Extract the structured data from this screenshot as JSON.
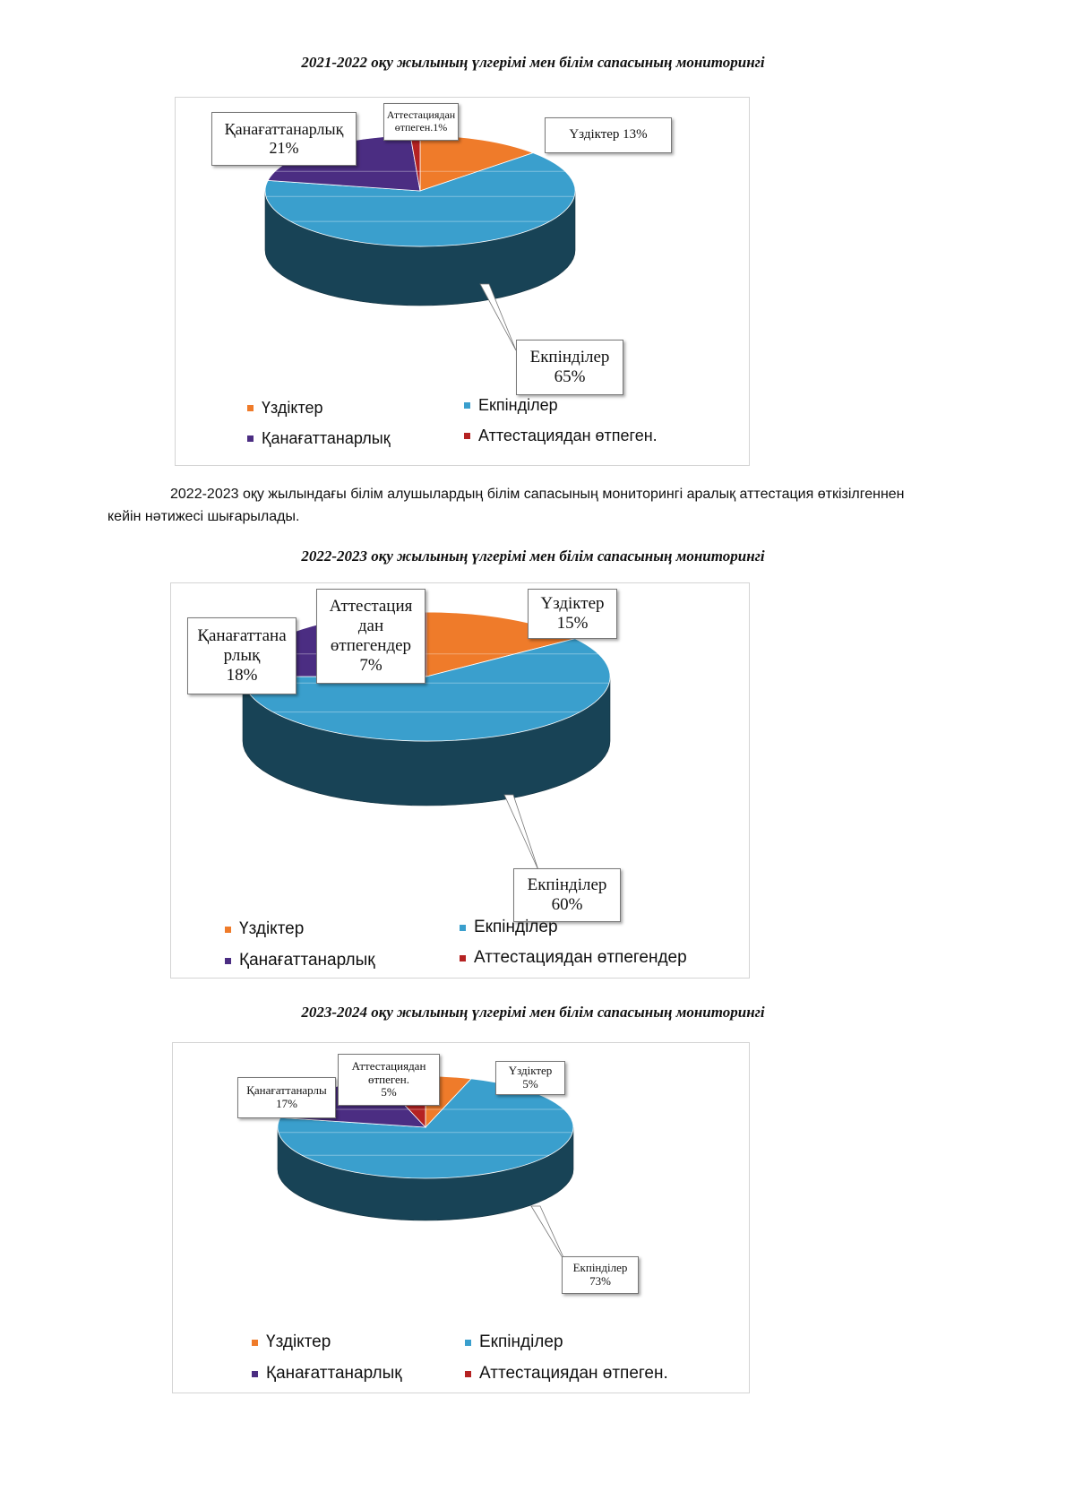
{
  "page": {
    "paragraph_line1": "2022-2023 оқу жылындағы білім алушылардың білім сапасының мониторингі аралық аттестация өткізілгеннен",
    "paragraph_line2": "кейін нәтижесі шығарылады."
  },
  "colors": {
    "uzdikter": "#ef7b2a",
    "ekpindiler": "#3a9fcd",
    "kanagattanarlyk": "#4b2d82",
    "attestation": "#b52222"
  },
  "chart_data": [
    {
      "type": "pie",
      "title": "2021-2022 оқу жылының үлгерімі мен білім сапасының  мониторингі",
      "categories": [
        "Үздіктер",
        "Екпінділер",
        "Қанағаттанарлық",
        "Аттестациядан өтпеген."
      ],
      "values": [
        13,
        65,
        21,
        1
      ],
      "data_labels": [
        "Үздіктер 13%",
        "Екпінділер\n65%",
        "Қанағаттанарлық\n21%",
        "Аттестациядан\nөтпеген.1%"
      ],
      "legend": [
        "Үздіктер",
        "Екпінділер",
        "Қанағаттанарлық",
        "Аттестациядан өтпеген."
      ],
      "legend_position": "bottom"
    },
    {
      "type": "pie",
      "title": "2022-2023 оқу жылының үлгерімі мен білім сапасының  мониторингі",
      "categories": [
        "Үздіктер",
        "Екпінділер",
        "Қанағаттанарлық",
        "Аттестациядан өтпегендер"
      ],
      "values": [
        15,
        60,
        18,
        7
      ],
      "data_labels": [
        "Үздіктер\n15%",
        "Екпінділер\n60%",
        "Қанағаттана\nрлық\n18%",
        "Аттестация\nдан\nөтпегендер\n7%"
      ],
      "legend": [
        "Үздіктер",
        "Екпінділер",
        "Қанағаттанарлық",
        "Аттестациядан өтпегендер"
      ],
      "legend_position": "bottom"
    },
    {
      "type": "pie",
      "title": "2023-2024 оқу жылының үлгерімі мен білім сапасының  мониторингі",
      "categories": [
        "Үздіктер",
        "Екпінділер",
        "Қанағаттанарлық",
        "Аттестациядан өтпеген."
      ],
      "values": [
        5,
        73,
        17,
        5
      ],
      "data_labels": [
        "Үздіктер\n5%",
        "Екпінділер\n73%",
        "Қанағаттанарлы\n17%",
        "Аттестациядан\nөтпеген.\n5%"
      ],
      "legend": [
        "Үздіктер",
        "Екпінділер",
        "Қанағаттанарлық",
        "Аттестациядан өтпеген."
      ],
      "legend_position": "bottom"
    }
  ]
}
